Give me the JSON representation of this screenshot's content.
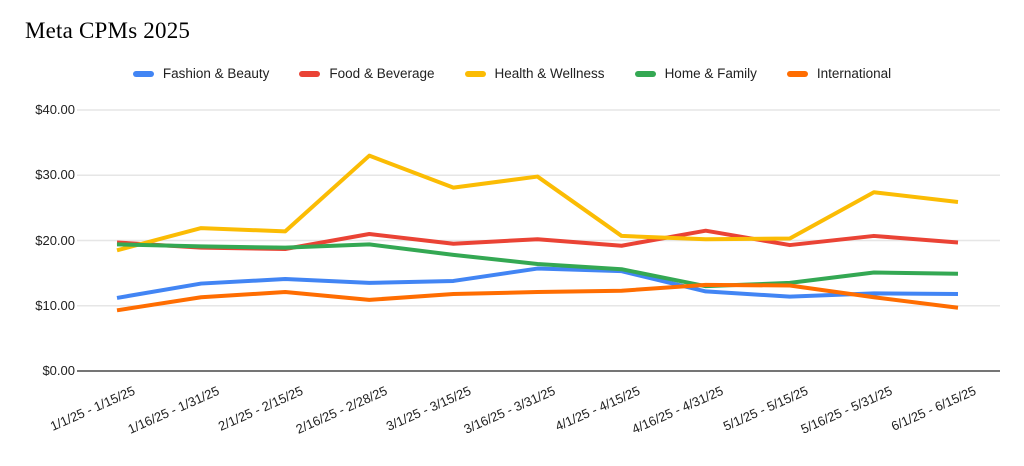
{
  "title": "Meta CPMs 2025",
  "chart_data": {
    "type": "line",
    "title": "Meta CPMs 2025",
    "categories": [
      "1/1/25 - 1/15/25",
      "1/16/25 - 1/31/25",
      "2/1/25 - 2/15/25",
      "2/16/25 - 2/28/25",
      "3/1/25 - 3/15/25",
      "3/16/25 - 3/31/25",
      "4/1/25 - 4/15/25",
      "4/16/25 - 4/31/25",
      "5/1/25 - 5/15/25",
      "5/16/25 - 5/31/25",
      "6/1/25 - 6/15/25"
    ],
    "series": [
      {
        "name": "Fashion & Beauty",
        "color": "#4285F4",
        "values": [
          11.2,
          13.4,
          14.1,
          13.5,
          13.8,
          15.7,
          15.3,
          12.2,
          11.4,
          11.9,
          11.8
        ]
      },
      {
        "name": "Food & Beverage",
        "color": "#EA4335",
        "values": [
          19.7,
          18.9,
          18.7,
          21.0,
          19.5,
          20.2,
          19.2,
          21.5,
          19.3,
          20.7,
          19.7
        ]
      },
      {
        "name": "Health & Wellness",
        "color": "#FBBC04",
        "values": [
          18.5,
          21.9,
          21.4,
          33.0,
          28.1,
          29.8,
          20.7,
          20.2,
          20.3,
          27.4,
          25.9
        ]
      },
      {
        "name": "Home & Family",
        "color": "#34A853",
        "values": [
          19.4,
          19.1,
          18.9,
          19.4,
          17.8,
          16.4,
          15.6,
          13.0,
          13.5,
          15.1,
          14.9
        ]
      },
      {
        "name": "International",
        "color": "#FF6D01",
        "values": [
          9.3,
          11.3,
          12.1,
          10.9,
          11.8,
          12.1,
          12.3,
          13.2,
          13.1,
          11.3,
          9.7
        ]
      }
    ],
    "ylabel": "",
    "xlabel": "",
    "ylim": [
      0,
      40
    ],
    "y_tick_values": [
      0,
      10,
      20,
      30,
      40
    ],
    "y_tick_labels": [
      "$0.00",
      "$10.00",
      "$20.00",
      "$30.00",
      "$40.00"
    ],
    "grid": true,
    "legend_position": "top"
  },
  "colors": {
    "background": "#ffffff",
    "gridline": "#e6e6e6",
    "zero_axis": "#757575",
    "tick_text": "#212121",
    "title_text": "#000000"
  }
}
